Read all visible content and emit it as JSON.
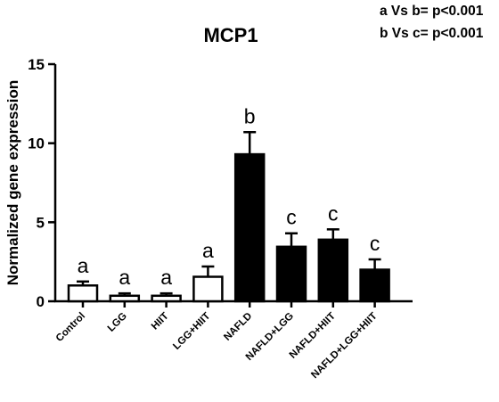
{
  "chart_data": {
    "type": "bar",
    "title": "MCP1",
    "ylabel": "Normalized gene expression",
    "xlabel": "",
    "ylim": [
      0,
      15
    ],
    "yticks": [
      "0",
      "5",
      "10",
      "15"
    ],
    "categories": [
      "Control",
      "LGG",
      "HIIT",
      "LGG+HIIT",
      "NAFLD",
      "NAFLD+LGG",
      "NAFLD+HIIT",
      "NAFLD+LGG+HIIT"
    ],
    "values": [
      1.0,
      0.35,
      0.35,
      1.55,
      9.3,
      3.45,
      3.9,
      2.0
    ],
    "errors": [
      0.25,
      0.15,
      0.15,
      0.65,
      1.4,
      0.85,
      0.65,
      0.65
    ],
    "fills": [
      "#ffffff",
      "#ffffff",
      "#ffffff",
      "#ffffff",
      "#000000",
      "#000000",
      "#000000",
      "#000000"
    ],
    "group_letters": [
      "a",
      "a",
      "a",
      "a",
      "b",
      "c",
      "c",
      "c"
    ],
    "annotations": [
      "a Vs b= p<0.001",
      "b Vs c= p<0.001"
    ],
    "grid": false,
    "legend": "none"
  }
}
